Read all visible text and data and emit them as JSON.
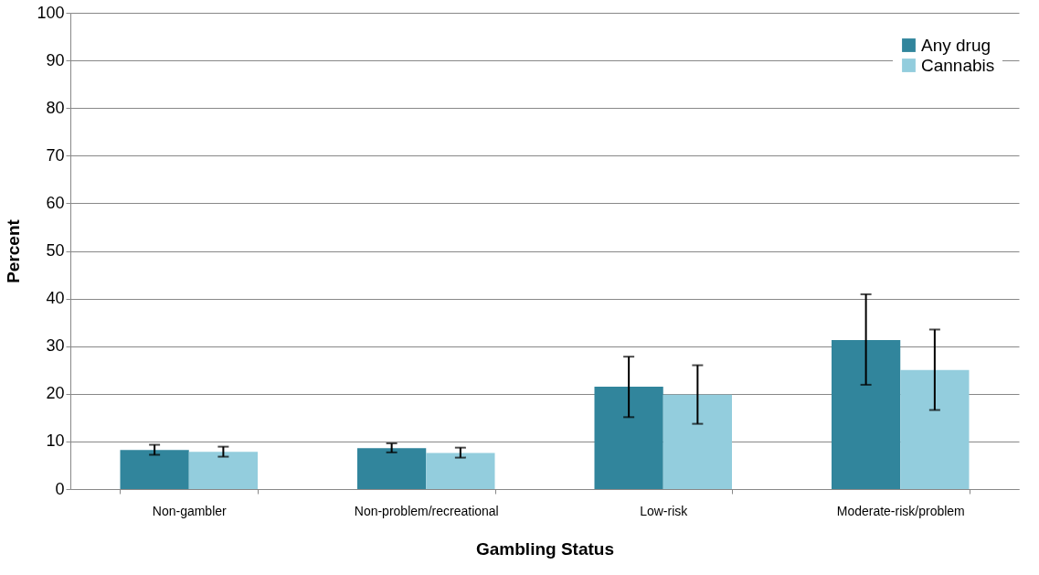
{
  "chart_data": {
    "type": "bar",
    "xlabel": "Gambling Status",
    "ylabel": "Percent",
    "categories": [
      "Non-gambler",
      "Non-problem/recreational",
      "Low-risk",
      "Moderate-risk/problem"
    ],
    "series": [
      {
        "name": "Any drug",
        "color": "#31859c",
        "values": [
          8.2,
          8.6,
          21.5,
          31.3
        ],
        "errors": [
          [
            7.2,
            9.3
          ],
          [
            7.7,
            9.6
          ],
          [
            15.1,
            27.8
          ],
          [
            21.9,
            40.9
          ]
        ]
      },
      {
        "name": "Cannabis",
        "color": "#93cddd",
        "values": [
          7.8,
          7.6,
          19.8,
          25.0
        ],
        "errors": [
          [
            6.8,
            8.9
          ],
          [
            6.6,
            8.7
          ],
          [
            13.7,
            26.0
          ],
          [
            16.6,
            33.5
          ]
        ]
      }
    ],
    "ylim": [
      0,
      100
    ],
    "yticks": [
      0,
      10,
      20,
      30,
      40,
      50,
      60,
      70,
      80,
      90,
      100
    ],
    "grid": "y",
    "legend": "top right"
  }
}
